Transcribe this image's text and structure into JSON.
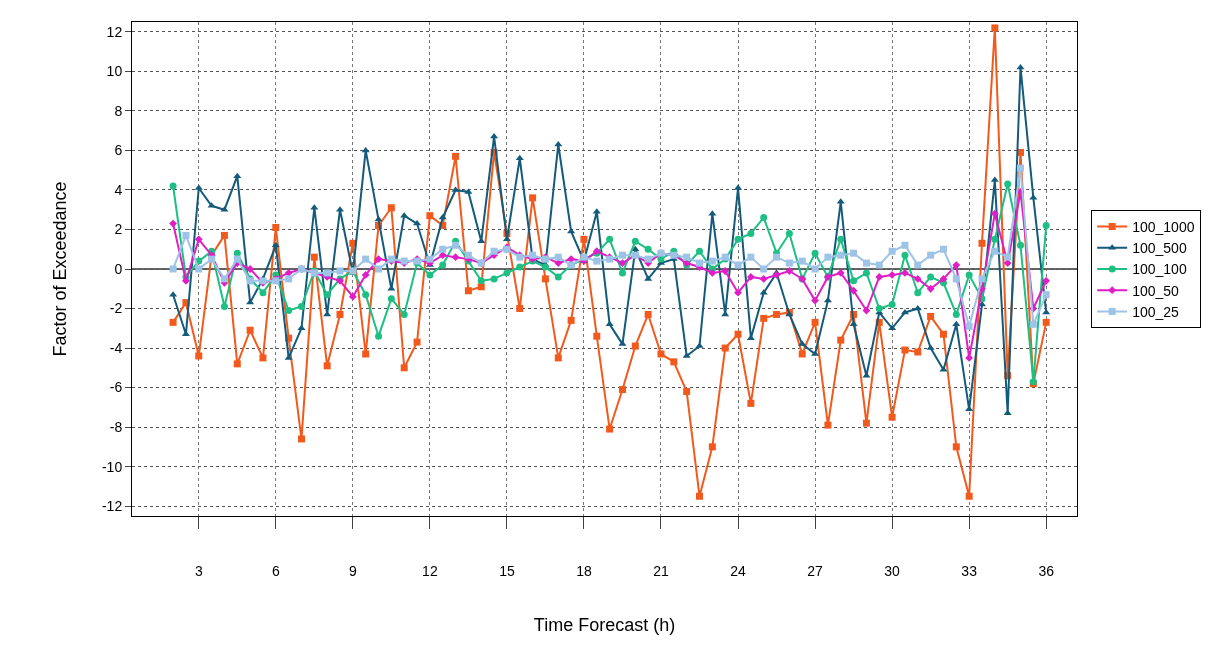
{
  "chart_data": {
    "type": "line",
    "xlabel": "Time Forecast (h)",
    "ylabel": "Factor of Exceedance",
    "x": [
      2,
      2.5,
      3,
      3.5,
      4,
      4.5,
      5,
      5.5,
      6,
      6.5,
      7,
      7.5,
      8,
      8.5,
      9,
      9.5,
      10,
      10.5,
      11,
      11.5,
      12,
      12.5,
      13,
      13.5,
      14,
      14.5,
      15,
      15.5,
      16,
      16.5,
      17,
      17.5,
      18,
      18.5,
      19,
      19.5,
      20,
      20.5,
      21,
      21.5,
      22,
      22.5,
      23,
      23.5,
      24,
      24.5,
      25,
      25.5,
      26,
      26.5,
      27,
      27.5,
      28,
      28.5,
      29,
      29.5,
      30,
      30.5,
      31,
      31.5,
      32,
      32.5,
      33,
      33.5,
      34,
      34.5,
      35,
      35.5,
      36
    ],
    "xlim": [
      0.4,
      37.2
    ],
    "xticks": [
      3,
      6,
      9,
      12,
      15,
      18,
      21,
      24,
      27,
      30,
      33,
      36
    ],
    "ylim": [
      -12.5,
      12.5
    ],
    "yticks": [
      -12,
      -10,
      -8,
      -6,
      -4,
      -2,
      0,
      2,
      4,
      6,
      8,
      10,
      12
    ],
    "grid": true,
    "legend": "right",
    "line_style": "solid",
    "ref_lines": [
      {
        "axis": "y",
        "value": 0,
        "color": "#333333"
      }
    ],
    "series": [
      {
        "name": "100_1000",
        "color": "#f25a1d",
        "marker": "square",
        "values": [
          -2.7,
          -1.7,
          -4.4,
          0.7,
          1.7,
          -4.8,
          -3.1,
          -4.5,
          2.1,
          -3.5,
          -8.6,
          0.6,
          -4.9,
          -2.3,
          1.3,
          -4.3,
          2.2,
          3.1,
          -5.0,
          -3.7,
          2.7,
          2.2,
          5.7,
          -1.1,
          -0.9,
          5.9,
          1.8,
          -2.0,
          3.6,
          -0.5,
          -4.5,
          -2.6,
          1.5,
          -3.4,
          -8.1,
          -6.1,
          -3.9,
          -2.3,
          -4.3,
          -4.7,
          -6.2,
          -11.5,
          -9.0,
          -4.0,
          -3.3,
          -6.8,
          -2.5,
          -2.3,
          -2.2,
          -4.3,
          -2.7,
          -7.9,
          -3.6,
          -2.3,
          -7.8,
          -2.7,
          -7.5,
          -4.1,
          -4.2,
          -2.4,
          -3.3,
          -9.0,
          -11.5,
          1.3,
          12.2,
          -5.4,
          5.9,
          -5.8,
          -2.7
        ]
      },
      {
        "name": "100_500",
        "color": "#135a7b",
        "marker": "triangle",
        "values": [
          -1.3,
          -3.3,
          4.1,
          3.2,
          3.0,
          4.7,
          -1.7,
          -0.5,
          1.2,
          -4.5,
          -3.0,
          3.1,
          -2.3,
          3.0,
          -0.2,
          6.0,
          2.5,
          -1.0,
          2.7,
          2.3,
          0.2,
          2.6,
          4.0,
          3.9,
          1.4,
          6.7,
          1.5,
          5.6,
          0.5,
          0.2,
          6.3,
          1.9,
          0.4,
          2.9,
          -2.8,
          -3.8,
          1.0,
          -0.5,
          0.3,
          0.5,
          -4.4,
          -3.9,
          2.8,
          -2.3,
          4.1,
          -3.5,
          -1.2,
          -0.2,
          -2.3,
          -3.8,
          -4.3,
          -1.6,
          3.4,
          -2.8,
          -5.4,
          -2.2,
          -3.0,
          -2.2,
          -2.0,
          -4.0,
          -5.1,
          -2.8,
          -7.1,
          -1.8,
          4.5,
          -7.3,
          10.2,
          3.6,
          -2.2
        ]
      },
      {
        "name": "100_100",
        "color": "#1dbf83",
        "marker": "circle",
        "values": [
          4.2,
          -0.4,
          0.4,
          0.9,
          -1.9,
          0.8,
          -0.5,
          -1.2,
          -0.3,
          -2.1,
          -1.9,
          -0.1,
          -1.3,
          -0.5,
          -0.1,
          -1.3,
          -3.4,
          -1.5,
          -2.3,
          0.3,
          -0.3,
          0.2,
          1.4,
          0.4,
          -0.6,
          -0.5,
          -0.2,
          0.1,
          0.4,
          0.1,
          -0.4,
          0.2,
          0.5,
          0.8,
          1.5,
          -0.2,
          1.4,
          1.0,
          0.5,
          0.9,
          0.2,
          0.9,
          0.0,
          0.5,
          1.5,
          1.8,
          2.6,
          0.8,
          1.8,
          -0.5,
          0.8,
          -0.4,
          1.5,
          -0.6,
          -0.2,
          -2.0,
          -1.8,
          0.7,
          -1.2,
          -0.4,
          -0.7,
          -2.3,
          -0.3,
          -1.5,
          1.5,
          4.3,
          1.2,
          -5.7,
          2.2
        ]
      },
      {
        "name": "100_50",
        "color": "#e01ec6",
        "marker": "diamond",
        "values": [
          2.3,
          -0.6,
          1.5,
          0.7,
          -0.7,
          0.3,
          0.0,
          -0.7,
          -0.5,
          -0.2,
          0.0,
          -0.2,
          -0.4,
          -0.6,
          -1.4,
          -0.3,
          0.5,
          0.4,
          0.3,
          0.5,
          0.3,
          0.7,
          0.6,
          0.5,
          0.3,
          0.7,
          1.1,
          0.7,
          0.5,
          0.6,
          0.3,
          0.5,
          0.4,
          0.9,
          0.6,
          0.3,
          0.7,
          0.3,
          0.8,
          0.7,
          0.3,
          0.1,
          -0.2,
          -0.1,
          -1.2,
          -0.4,
          -0.5,
          -0.3,
          -0.1,
          -0.5,
          -1.6,
          -0.4,
          -0.2,
          -1.1,
          -2.1,
          -0.4,
          -0.3,
          -0.2,
          -0.5,
          -1.0,
          -0.5,
          0.2,
          -4.5,
          -1.0,
          2.8,
          0.3,
          3.9,
          -2.0,
          -0.6
        ]
      },
      {
        "name": "100_25",
        "color": "#9dc3e6",
        "marker": "square",
        "values": [
          0.0,
          1.7,
          0.0,
          0.5,
          -0.5,
          0.5,
          -0.6,
          -0.6,
          -0.6,
          -0.5,
          0.0,
          -0.2,
          -0.2,
          -0.1,
          -0.1,
          0.5,
          0.0,
          0.5,
          0.4,
          0.4,
          0.5,
          1.0,
          1.2,
          0.7,
          0.3,
          0.9,
          1.0,
          0.6,
          0.7,
          0.5,
          0.6,
          0.2,
          0.6,
          0.4,
          0.5,
          0.7,
          0.7,
          0.5,
          0.8,
          0.7,
          0.6,
          0.3,
          0.4,
          0.6,
          0.2,
          0.6,
          0.0,
          0.6,
          0.3,
          0.4,
          0.0,
          0.6,
          0.7,
          0.8,
          0.3,
          0.2,
          0.9,
          1.2,
          0.2,
          0.7,
          1.0,
          -0.5,
          -2.9,
          -0.5,
          0.9,
          0.6,
          5.1,
          -2.8,
          -1.3
        ]
      }
    ]
  }
}
